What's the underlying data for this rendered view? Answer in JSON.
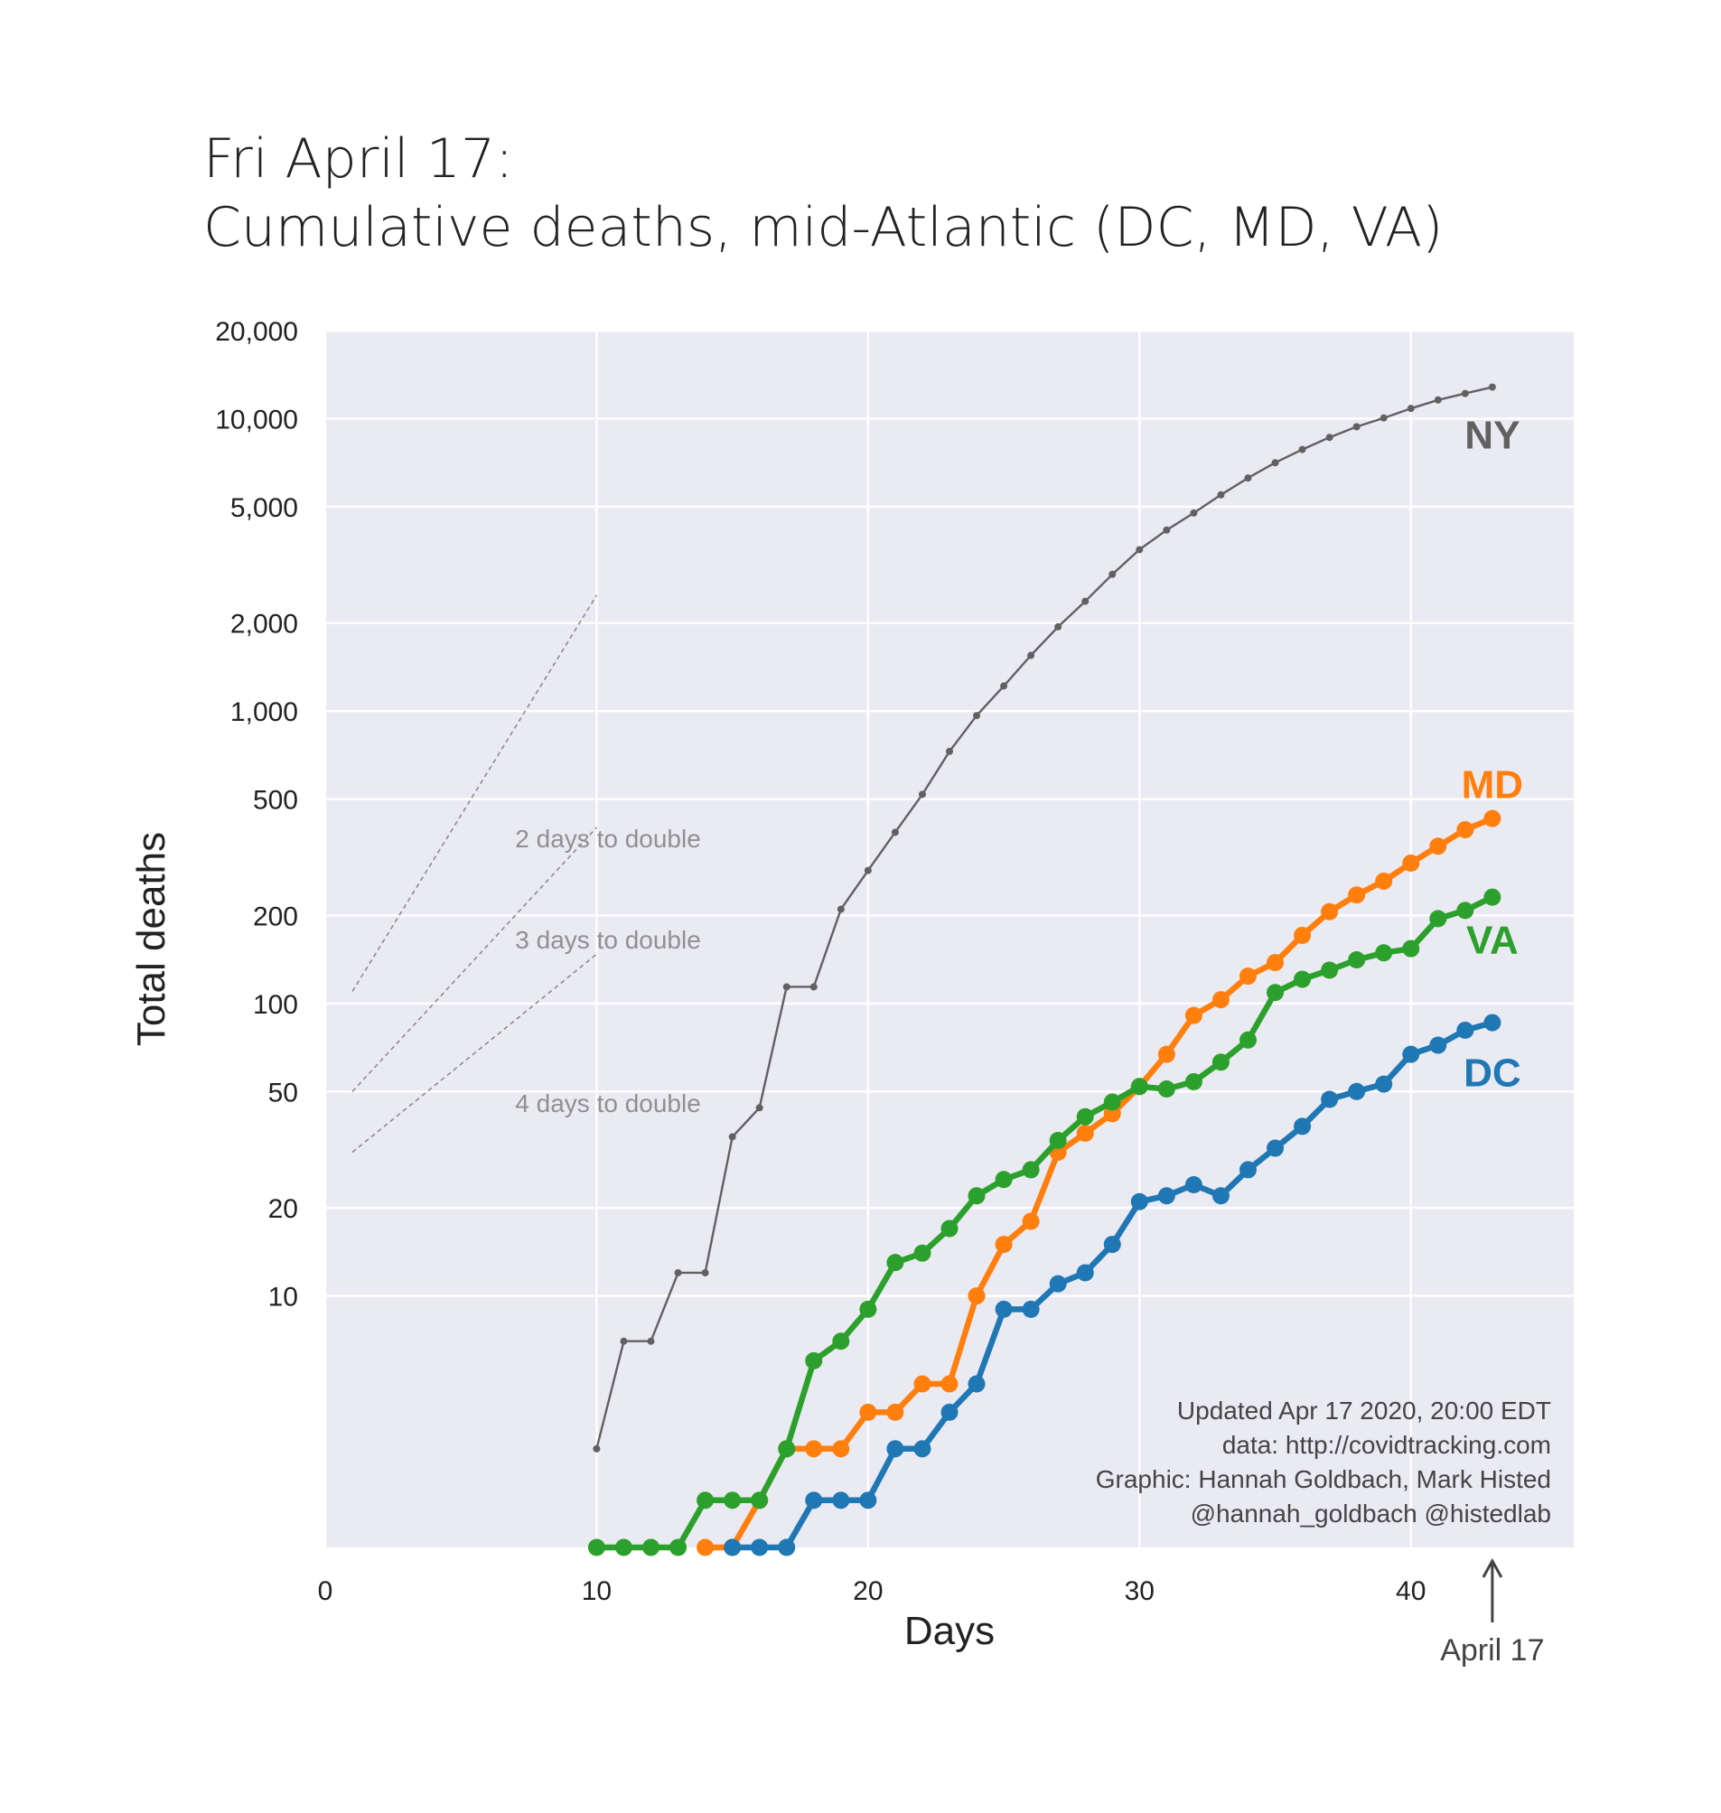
{
  "title": {
    "line1": "Fri April 17:",
    "line2": "Cumulative deaths, mid-Atlantic (DC, MD, VA)"
  },
  "chart_data": {
    "type": "line",
    "xlabel": "Days",
    "ylabel": "Total deaths",
    "yscale": "log",
    "xlim": [
      0,
      46
    ],
    "ylim": [
      1.38,
      20000
    ],
    "xticks": [
      0,
      10,
      20,
      30,
      40
    ],
    "yticks": [
      10,
      20,
      50,
      100,
      200,
      500,
      1000,
      2000,
      5000,
      10000,
      20000
    ],
    "ytick_labels": [
      "10",
      "20",
      "50",
      "100",
      "200",
      "500",
      "1,000",
      "2,000",
      "5,000",
      "10,000",
      "20,000"
    ],
    "grid": true,
    "series": [
      {
        "name": "NY",
        "color": "#616161",
        "x": [
          10,
          11,
          12,
          13,
          14,
          15,
          16,
          17,
          18,
          19,
          20,
          21,
          22,
          23,
          24,
          25,
          26,
          27,
          28,
          29,
          30,
          31,
          32,
          33,
          34,
          35,
          36,
          37,
          38,
          39,
          40,
          41,
          42,
          43
        ],
        "values": [
          3,
          7,
          7,
          12,
          12,
          35,
          44,
          114,
          114,
          210,
          285,
          385,
          519,
          728,
          965,
          1218,
          1550,
          1941,
          2373,
          2935,
          3565,
          4159,
          4758,
          5489,
          6268,
          7067,
          7844,
          8627,
          9385,
          10056,
          10834,
          11586,
          12192,
          12822
        ]
      },
      {
        "name": "MD",
        "color": "#ff7f0e",
        "x": [
          14,
          15,
          16,
          17,
          18,
          19,
          20,
          21,
          22,
          23,
          24,
          25,
          26,
          27,
          28,
          29,
          30,
          31,
          32,
          33,
          34,
          35,
          36,
          37,
          38,
          39,
          40,
          41,
          42,
          43
        ],
        "values": [
          1,
          1,
          2,
          3,
          3,
          3,
          4,
          4,
          5,
          5,
          10,
          15,
          18,
          31,
          36,
          42,
          52,
          67,
          91,
          103,
          124,
          138,
          171,
          206,
          235,
          262,
          302,
          345,
          393,
          429
        ]
      },
      {
        "name": "VA",
        "color": "#2ca02c",
        "x": [
          10,
          11,
          12,
          13,
          14,
          15,
          16,
          17,
          18,
          19,
          20,
          21,
          22,
          23,
          24,
          25,
          26,
          27,
          28,
          29,
          30,
          31,
          32,
          33,
          34,
          35,
          36,
          37,
          38,
          39,
          40,
          41,
          42,
          43
        ],
        "values": [
          1,
          1,
          1,
          1,
          2,
          2,
          2,
          3,
          6,
          7,
          9,
          13,
          14,
          17,
          22,
          25,
          27,
          34,
          41,
          46,
          52,
          51,
          54,
          63,
          75,
          109,
          121,
          130,
          141,
          149,
          154,
          195,
          208,
          231
        ]
      },
      {
        "name": "DC",
        "color": "#1f77b4",
        "x": [
          15,
          16,
          17,
          18,
          19,
          20,
          21,
          22,
          23,
          24,
          25,
          26,
          27,
          28,
          29,
          30,
          31,
          32,
          33,
          34,
          35,
          36,
          37,
          38,
          39,
          40,
          41,
          42,
          43
        ],
        "values": [
          1,
          1,
          1,
          2,
          2,
          2,
          3,
          3,
          4,
          5,
          9,
          9,
          11,
          12,
          15,
          21,
          22,
          24,
          22,
          27,
          32,
          38,
          47,
          50,
          53,
          67,
          72,
          81,
          86
        ]
      }
    ],
    "series_labels": [
      "NY",
      "MD",
      "VA",
      "DC"
    ],
    "doubling_lines": [
      {
        "label": "2 days to double",
        "days": 2,
        "x_start": 1,
        "x_end": 10,
        "y_start": 110
      },
      {
        "label": "3 days to double",
        "days": 3,
        "x_start": 1,
        "x_end": 10,
        "y_start": 50
      },
      {
        "label": "4 days to double",
        "days": 4,
        "x_start": 1,
        "x_end": 10,
        "y_start": 31
      }
    ],
    "annotation": {
      "label": "April 17",
      "x": 43
    },
    "credits": [
      "Updated Apr 17 2020, 20:00 EDT",
      "data: http://covidtracking.com",
      "Graphic: Hannah Goldbach, Mark Histed",
      "@hannah_goldbach @histedlab"
    ]
  }
}
